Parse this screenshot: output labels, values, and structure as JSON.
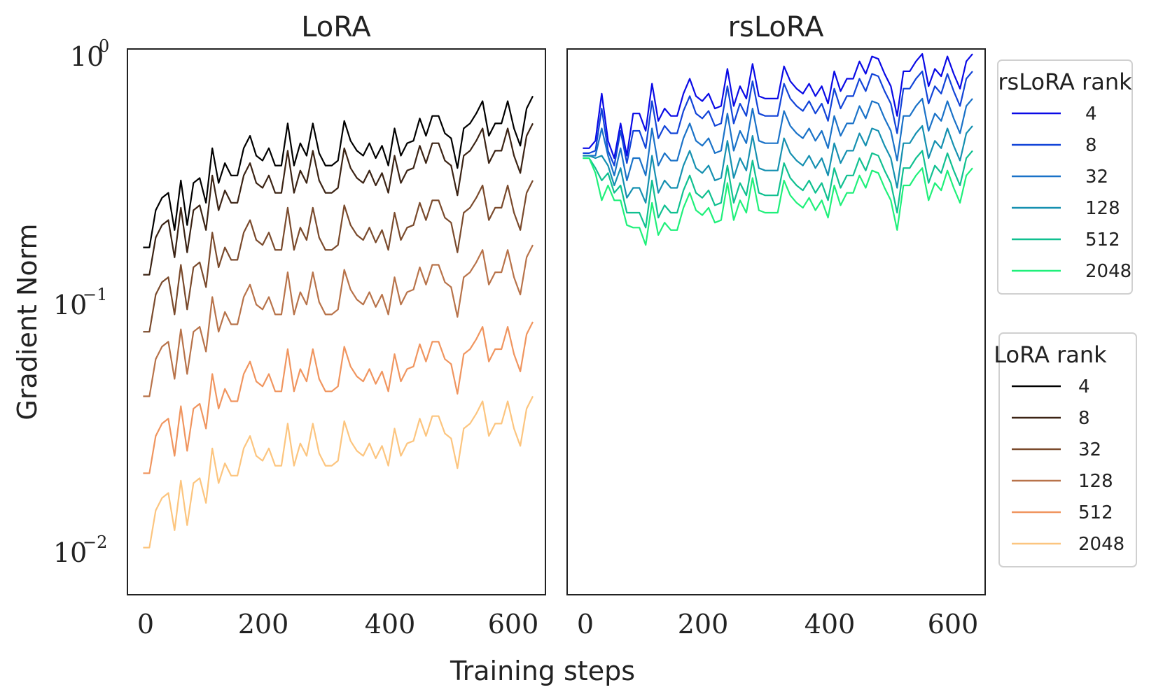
{
  "chart_data": {
    "type": "line",
    "xlabel": "Training steps",
    "ylabel": "Gradient Norm",
    "x_ticks": [
      "0",
      "200",
      "400",
      "600"
    ],
    "y_ticks": [
      {
        "value": 1,
        "base": "10",
        "exp": "0"
      },
      {
        "value": 0.1,
        "base": "10",
        "exp": "−1"
      },
      {
        "value": 0.01,
        "base": "10",
        "exp": "−2"
      }
    ],
    "xlim": [
      -25,
      640
    ],
    "ylim_log10": [
      -2.2,
      0
    ],
    "x": [
      0,
      10,
      20,
      30,
      40,
      50,
      60,
      70,
      80,
      90,
      100,
      110,
      120,
      130,
      140,
      150,
      160,
      170,
      180,
      190,
      200,
      210,
      220,
      230,
      240,
      250,
      260,
      270,
      280,
      290,
      300,
      310,
      320,
      330,
      340,
      350,
      360,
      370,
      380,
      390,
      400,
      410,
      420,
      430,
      440,
      450,
      460,
      470,
      480,
      490,
      500,
      510,
      520,
      530,
      540,
      550,
      560,
      570,
      580,
      590,
      600,
      610,
      620
    ],
    "panels": [
      {
        "title": "LoRA",
        "legend_title": "LoRA rank",
        "series": [
          {
            "name": "4",
            "color": "#000000",
            "log10": [
              -0.8,
              -0.8,
              -0.65,
              -0.6,
              -0.58,
              -0.73,
              -0.53,
              -0.71,
              -0.54,
              -0.52,
              -0.62,
              -0.4,
              -0.54,
              -0.46,
              -0.51,
              -0.51,
              -0.4,
              -0.35,
              -0.43,
              -0.45,
              -0.4,
              -0.47,
              -0.47,
              -0.3,
              -0.47,
              -0.38,
              -0.43,
              -0.3,
              -0.42,
              -0.47,
              -0.47,
              -0.45,
              -0.29,
              -0.37,
              -0.41,
              -0.43,
              -0.38,
              -0.44,
              -0.39,
              -0.47,
              -0.32,
              -0.43,
              -0.38,
              -0.37,
              -0.28,
              -0.35,
              -0.27,
              -0.27,
              -0.34,
              -0.36,
              -0.48,
              -0.32,
              -0.3,
              -0.26,
              -0.21,
              -0.35,
              -0.3,
              -0.3,
              -0.21,
              -0.32,
              -0.39,
              -0.24,
              -0.19
            ]
          },
          {
            "name": "8",
            "color": "#3b2314",
            "log10": [
              -0.91,
              -0.91,
              -0.76,
              -0.71,
              -0.69,
              -0.84,
              -0.64,
              -0.82,
              -0.65,
              -0.63,
              -0.73,
              -0.51,
              -0.65,
              -0.57,
              -0.62,
              -0.62,
              -0.51,
              -0.46,
              -0.54,
              -0.56,
              -0.51,
              -0.58,
              -0.58,
              -0.41,
              -0.58,
              -0.49,
              -0.54,
              -0.41,
              -0.53,
              -0.58,
              -0.58,
              -0.56,
              -0.4,
              -0.48,
              -0.52,
              -0.54,
              -0.49,
              -0.55,
              -0.5,
              -0.58,
              -0.43,
              -0.54,
              -0.49,
              -0.48,
              -0.39,
              -0.46,
              -0.38,
              -0.38,
              -0.45,
              -0.47,
              -0.59,
              -0.43,
              -0.41,
              -0.37,
              -0.32,
              -0.46,
              -0.41,
              -0.41,
              -0.32,
              -0.43,
              -0.5,
              -0.35,
              -0.3
            ]
          },
          {
            "name": "32",
            "color": "#7a4a2c",
            "log10": [
              -1.14,
              -1.14,
              -0.99,
              -0.94,
              -0.92,
              -1.07,
              -0.87,
              -1.05,
              -0.88,
              -0.86,
              -0.96,
              -0.74,
              -0.88,
              -0.8,
              -0.85,
              -0.85,
              -0.74,
              -0.69,
              -0.77,
              -0.79,
              -0.74,
              -0.81,
              -0.81,
              -0.64,
              -0.81,
              -0.72,
              -0.77,
              -0.64,
              -0.76,
              -0.81,
              -0.81,
              -0.79,
              -0.63,
              -0.71,
              -0.75,
              -0.77,
              -0.72,
              -0.78,
              -0.73,
              -0.81,
              -0.66,
              -0.77,
              -0.72,
              -0.71,
              -0.62,
              -0.69,
              -0.61,
              -0.61,
              -0.68,
              -0.7,
              -0.82,
              -0.66,
              -0.64,
              -0.6,
              -0.55,
              -0.69,
              -0.64,
              -0.64,
              -0.55,
              -0.66,
              -0.73,
              -0.58,
              -0.53
            ]
          },
          {
            "name": "128",
            "color": "#b8734a",
            "log10": [
              -1.4,
              -1.4,
              -1.25,
              -1.2,
              -1.18,
              -1.33,
              -1.13,
              -1.31,
              -1.14,
              -1.12,
              -1.22,
              -1.0,
              -1.14,
              -1.06,
              -1.11,
              -1.11,
              -1.0,
              -0.95,
              -1.03,
              -1.05,
              -1.0,
              -1.07,
              -1.07,
              -0.9,
              -1.07,
              -0.98,
              -1.03,
              -0.9,
              -1.02,
              -1.07,
              -1.07,
              -1.05,
              -0.89,
              -0.97,
              -1.01,
              -1.03,
              -0.98,
              -1.04,
              -0.99,
              -1.07,
              -0.92,
              -1.03,
              -0.98,
              -0.97,
              -0.88,
              -0.95,
              -0.87,
              -0.87,
              -0.94,
              -0.96,
              -1.08,
              -0.92,
              -0.9,
              -0.86,
              -0.81,
              -0.95,
              -0.9,
              -0.9,
              -0.81,
              -0.92,
              -0.99,
              -0.84,
              -0.79
            ]
          },
          {
            "name": "512",
            "color": "#f0955f",
            "log10": [
              -1.71,
              -1.71,
              -1.56,
              -1.51,
              -1.49,
              -1.64,
              -1.44,
              -1.62,
              -1.45,
              -1.43,
              -1.53,
              -1.31,
              -1.45,
              -1.37,
              -1.42,
              -1.42,
              -1.31,
              -1.26,
              -1.34,
              -1.36,
              -1.31,
              -1.38,
              -1.38,
              -1.21,
              -1.38,
              -1.29,
              -1.34,
              -1.21,
              -1.33,
              -1.38,
              -1.38,
              -1.36,
              -1.2,
              -1.28,
              -1.32,
              -1.34,
              -1.29,
              -1.35,
              -1.3,
              -1.38,
              -1.23,
              -1.34,
              -1.29,
              -1.28,
              -1.19,
              -1.26,
              -1.18,
              -1.18,
              -1.25,
              -1.27,
              -1.39,
              -1.23,
              -1.21,
              -1.17,
              -1.12,
              -1.26,
              -1.21,
              -1.21,
              -1.12,
              -1.23,
              -1.3,
              -1.15,
              -1.1
            ]
          },
          {
            "name": "2048",
            "color": "#fcc57f",
            "log10": [
              -2.01,
              -2.01,
              -1.86,
              -1.81,
              -1.79,
              -1.94,
              -1.74,
              -1.92,
              -1.75,
              -1.73,
              -1.83,
              -1.61,
              -1.75,
              -1.67,
              -1.72,
              -1.72,
              -1.61,
              -1.56,
              -1.64,
              -1.66,
              -1.61,
              -1.68,
              -1.68,
              -1.51,
              -1.68,
              -1.59,
              -1.64,
              -1.51,
              -1.63,
              -1.68,
              -1.68,
              -1.66,
              -1.5,
              -1.58,
              -1.62,
              -1.64,
              -1.59,
              -1.65,
              -1.6,
              -1.68,
              -1.53,
              -1.64,
              -1.59,
              -1.58,
              -1.49,
              -1.56,
              -1.48,
              -1.48,
              -1.55,
              -1.57,
              -1.69,
              -1.53,
              -1.51,
              -1.47,
              -1.42,
              -1.56,
              -1.51,
              -1.51,
              -1.42,
              -1.53,
              -1.6,
              -1.45,
              -1.4
            ]
          }
        ]
      },
      {
        "title": "rsLoRA",
        "legend_title": "rsLoRA rank",
        "series": [
          {
            "name": "4",
            "color": "#0a0ae6",
            "log10": [
              -0.4,
              -0.4,
              -0.37,
              -0.18,
              -0.37,
              -0.44,
              -0.3,
              -0.43,
              -0.26,
              -0.26,
              -0.33,
              -0.14,
              -0.29,
              -0.24,
              -0.27,
              -0.27,
              -0.18,
              -0.12,
              -0.19,
              -0.21,
              -0.18,
              -0.24,
              -0.23,
              -0.08,
              -0.23,
              -0.15,
              -0.2,
              -0.06,
              -0.19,
              -0.2,
              -0.2,
              -0.2,
              -0.07,
              -0.13,
              -0.16,
              -0.18,
              -0.14,
              -0.19,
              -0.15,
              -0.22,
              -0.09,
              -0.17,
              -0.12,
              -0.12,
              -0.05,
              -0.1,
              -0.03,
              -0.04,
              -0.1,
              -0.15,
              -0.27,
              -0.09,
              -0.09,
              -0.05,
              -0.02,
              -0.15,
              -0.08,
              -0.11,
              -0.03,
              -0.1,
              -0.16,
              -0.05,
              -0.02
            ]
          },
          {
            "name": "8",
            "color": "#1244d8",
            "log10": [
              -0.42,
              -0.42,
              -0.41,
              -0.24,
              -0.41,
              -0.47,
              -0.33,
              -0.46,
              -0.33,
              -0.33,
              -0.4,
              -0.21,
              -0.36,
              -0.31,
              -0.34,
              -0.34,
              -0.25,
              -0.19,
              -0.26,
              -0.28,
              -0.25,
              -0.31,
              -0.3,
              -0.15,
              -0.3,
              -0.22,
              -0.27,
              -0.13,
              -0.26,
              -0.27,
              -0.27,
              -0.27,
              -0.14,
              -0.2,
              -0.23,
              -0.25,
              -0.21,
              -0.26,
              -0.22,
              -0.29,
              -0.16,
              -0.24,
              -0.19,
              -0.19,
              -0.12,
              -0.17,
              -0.1,
              -0.11,
              -0.17,
              -0.22,
              -0.34,
              -0.16,
              -0.16,
              -0.12,
              -0.09,
              -0.22,
              -0.15,
              -0.18,
              -0.1,
              -0.17,
              -0.23,
              -0.12,
              -0.09
            ]
          },
          {
            "name": "32",
            "color": "#1a72c8",
            "log10": [
              -0.43,
              -0.43,
              -0.43,
              -0.32,
              -0.43,
              -0.51,
              -0.4,
              -0.53,
              -0.44,
              -0.44,
              -0.51,
              -0.32,
              -0.47,
              -0.42,
              -0.45,
              -0.45,
              -0.36,
              -0.3,
              -0.37,
              -0.39,
              -0.36,
              -0.42,
              -0.41,
              -0.26,
              -0.41,
              -0.33,
              -0.38,
              -0.24,
              -0.37,
              -0.38,
              -0.38,
              -0.38,
              -0.25,
              -0.31,
              -0.34,
              -0.36,
              -0.32,
              -0.37,
              -0.33,
              -0.4,
              -0.27,
              -0.35,
              -0.3,
              -0.3,
              -0.23,
              -0.28,
              -0.21,
              -0.22,
              -0.28,
              -0.33,
              -0.45,
              -0.27,
              -0.27,
              -0.23,
              -0.2,
              -0.33,
              -0.26,
              -0.29,
              -0.21,
              -0.28,
              -0.34,
              -0.23,
              -0.2
            ]
          },
          {
            "name": "128",
            "color": "#1590b0",
            "log10": [
              -0.43,
              -0.43,
              -0.44,
              -0.43,
              -0.47,
              -0.55,
              -0.48,
              -0.6,
              -0.56,
              -0.56,
              -0.62,
              -0.43,
              -0.58,
              -0.53,
              -0.56,
              -0.56,
              -0.47,
              -0.41,
              -0.48,
              -0.5,
              -0.47,
              -0.53,
              -0.52,
              -0.37,
              -0.52,
              -0.44,
              -0.49,
              -0.35,
              -0.48,
              -0.49,
              -0.49,
              -0.49,
              -0.36,
              -0.42,
              -0.45,
              -0.47,
              -0.43,
              -0.48,
              -0.44,
              -0.51,
              -0.38,
              -0.46,
              -0.41,
              -0.41,
              -0.34,
              -0.39,
              -0.32,
              -0.33,
              -0.39,
              -0.44,
              -0.56,
              -0.38,
              -0.38,
              -0.34,
              -0.31,
              -0.44,
              -0.37,
              -0.4,
              -0.32,
              -0.39,
              -0.45,
              -0.34,
              -0.31
            ]
          },
          {
            "name": "512",
            "color": "#10c090",
            "log10": [
              -0.44,
              -0.44,
              -0.48,
              -0.53,
              -0.5,
              -0.58,
              -0.55,
              -0.66,
              -0.66,
              -0.66,
              -0.72,
              -0.53,
              -0.68,
              -0.63,
              -0.66,
              -0.66,
              -0.57,
              -0.51,
              -0.58,
              -0.6,
              -0.57,
              -0.63,
              -0.62,
              -0.47,
              -0.62,
              -0.54,
              -0.59,
              -0.45,
              -0.58,
              -0.59,
              -0.59,
              -0.59,
              -0.46,
              -0.52,
              -0.55,
              -0.57,
              -0.53,
              -0.58,
              -0.54,
              -0.61,
              -0.48,
              -0.56,
              -0.51,
              -0.51,
              -0.44,
              -0.49,
              -0.42,
              -0.43,
              -0.49,
              -0.54,
              -0.66,
              -0.48,
              -0.48,
              -0.44,
              -0.41,
              -0.54,
              -0.47,
              -0.5,
              -0.42,
              -0.49,
              -0.55,
              -0.44,
              -0.41
            ]
          },
          {
            "name": "2048",
            "color": "#1ff07a",
            "log10": [
              -0.44,
              -0.44,
              -0.5,
              -0.61,
              -0.55,
              -0.61,
              -0.61,
              -0.71,
              -0.72,
              -0.72,
              -0.79,
              -0.62,
              -0.75,
              -0.7,
              -0.73,
              -0.73,
              -0.64,
              -0.58,
              -0.65,
              -0.67,
              -0.64,
              -0.7,
              -0.69,
              -0.54,
              -0.69,
              -0.61,
              -0.66,
              -0.52,
              -0.65,
              -0.66,
              -0.66,
              -0.66,
              -0.53,
              -0.59,
              -0.62,
              -0.64,
              -0.6,
              -0.65,
              -0.61,
              -0.68,
              -0.55,
              -0.63,
              -0.58,
              -0.58,
              -0.51,
              -0.56,
              -0.49,
              -0.5,
              -0.56,
              -0.61,
              -0.73,
              -0.55,
              -0.55,
              -0.51,
              -0.48,
              -0.61,
              -0.54,
              -0.57,
              -0.49,
              -0.56,
              -0.62,
              -0.51,
              -0.48
            ]
          }
        ]
      }
    ]
  }
}
